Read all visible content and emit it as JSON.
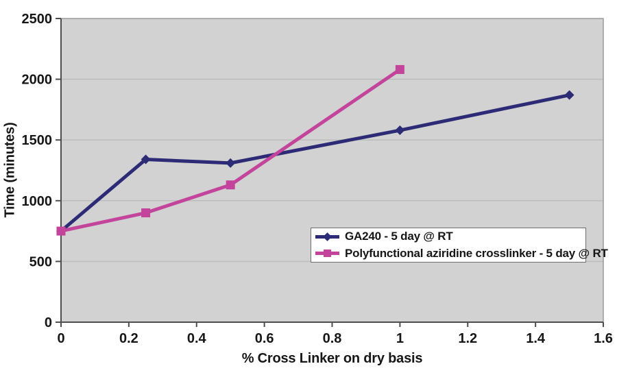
{
  "colors": {
    "page_bg": "#ffffff",
    "plot_bg": "#d2d2d2",
    "gridline": "#bcbcbc",
    "plot_border": "#9a9a9a",
    "axis": "#4d4d4d",
    "text": "#161616",
    "legend_bg": "#ffffff",
    "legend_border": "#6e6e6e",
    "series_blue": "#2e2b76",
    "series_pink": "#c2449b"
  },
  "chart_data": {
    "type": "line",
    "title": "",
    "xlabel": "% Cross Linker on dry basis",
    "ylabel": "Time (minutes)",
    "xlim": [
      0,
      1.6
    ],
    "ylim": [
      0,
      2500
    ],
    "xticks": [
      0,
      0.2,
      0.4,
      0.6,
      0.8,
      1,
      1.2,
      1.4,
      1.6
    ],
    "xtick_labels": [
      "0",
      "0.2",
      "0.4",
      "0.6",
      "0.8",
      "1",
      "1.2",
      "1.4",
      "1.6"
    ],
    "yticks": [
      0,
      500,
      1000,
      1500,
      2000,
      2500
    ],
    "ytick_labels": [
      "0",
      "500",
      "1000",
      "1500",
      "2000",
      "2500"
    ],
    "grid": "horizontal",
    "legend_position": "inside-lower-right",
    "series": [
      {
        "name": "GA240 - 5 day @ RT",
        "color": "#2e2b76",
        "marker": "diamond",
        "points": [
          [
            0,
            750
          ],
          [
            0.25,
            1340
          ],
          [
            0.5,
            1310
          ],
          [
            1,
            1580
          ],
          [
            1.5,
            1870
          ]
        ]
      },
      {
        "name": "Polyfunctional aziridine crosslinker - 5 day @ RT",
        "color": "#c2449b",
        "marker": "square",
        "points": [
          [
            0,
            750
          ],
          [
            0.25,
            900
          ],
          [
            0.5,
            1130
          ],
          [
            1,
            2080
          ]
        ]
      }
    ]
  }
}
